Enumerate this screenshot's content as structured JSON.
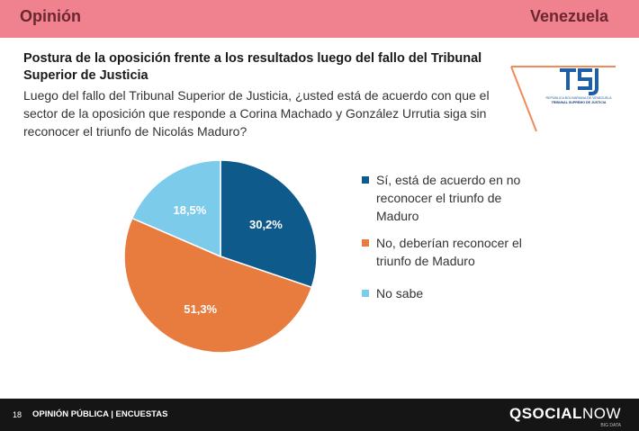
{
  "header": {
    "section": "Opinión",
    "country": "Venezuela"
  },
  "title": "Postura de la oposición frente a los resultados luego del fallo del Tribunal Superior de Justicia",
  "question": "Luego del fallo del Tribunal Superior de Justicia, ¿usted está de acuerdo con que el sector de la oposición que responde a Corina Machado y González Urrutia siga sin reconocer el triunfo de Nicolás Maduro?",
  "logo": {
    "icon": "tsj-logo-icon",
    "line1": "REPÚBLICA BOLIVARIANA DE VENEZUELA",
    "line2": "TRIBUNAL SUPREMO DE JUSTICIA"
  },
  "colors": {
    "accent": "#f0828f",
    "footer": "#151515"
  },
  "chart_data": {
    "type": "pie",
    "start_angle_deg": 0,
    "direction": "clockwise",
    "slices": [
      {
        "label": "Sí, está de acuerdo en no reconocer el triunfo de Maduro",
        "value": 30.2,
        "display": "30,2%",
        "color": "#0e5a8a"
      },
      {
        "label": "No, deberían reconocer el triunfo de Maduro",
        "value": 51.3,
        "display": "51,3%",
        "color": "#e87c3e"
      },
      {
        "label": "No sabe",
        "value": 18.5,
        "display": "18,5%",
        "color": "#7ccbeb"
      }
    ]
  },
  "footer": {
    "page": "18",
    "label": "OPINIÓN PÚBLICA | ENCUESTAS",
    "brand_bold": "QSOCIAL",
    "brand_light": "NOW",
    "tag": "BIG DATA"
  }
}
